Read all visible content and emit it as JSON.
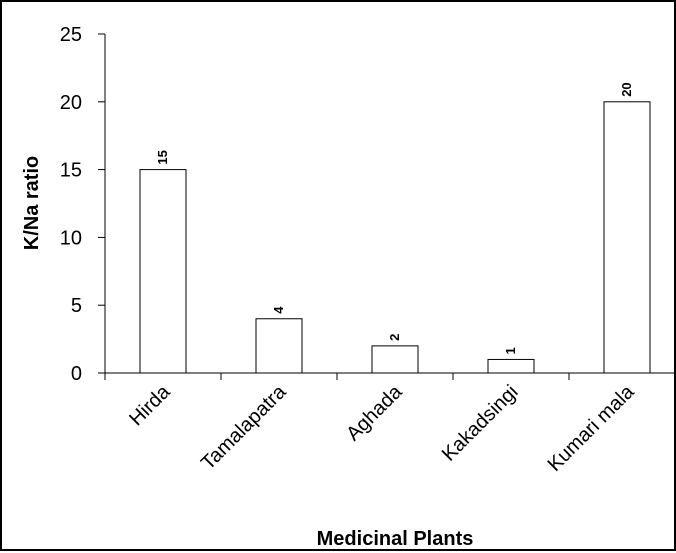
{
  "chart_data": {
    "type": "bar",
    "categories": [
      "Hirda",
      "Tamalapatra",
      "Aghada",
      "Kakadsingi",
      "Kumari mala"
    ],
    "values": [
      15,
      4,
      2,
      1,
      20
    ],
    "data_labels": [
      "15",
      "4",
      "2",
      "1",
      "20"
    ],
    "xlabel": "Medicinal Plants",
    "ylabel": "K/Na ratio",
    "ylim": [
      0,
      25
    ],
    "yticks": [
      0,
      5,
      10,
      15,
      20,
      25
    ],
    "grid": false,
    "legend": "none",
    "bar_fill": "#ffffff",
    "bar_stroke": "#000000"
  }
}
